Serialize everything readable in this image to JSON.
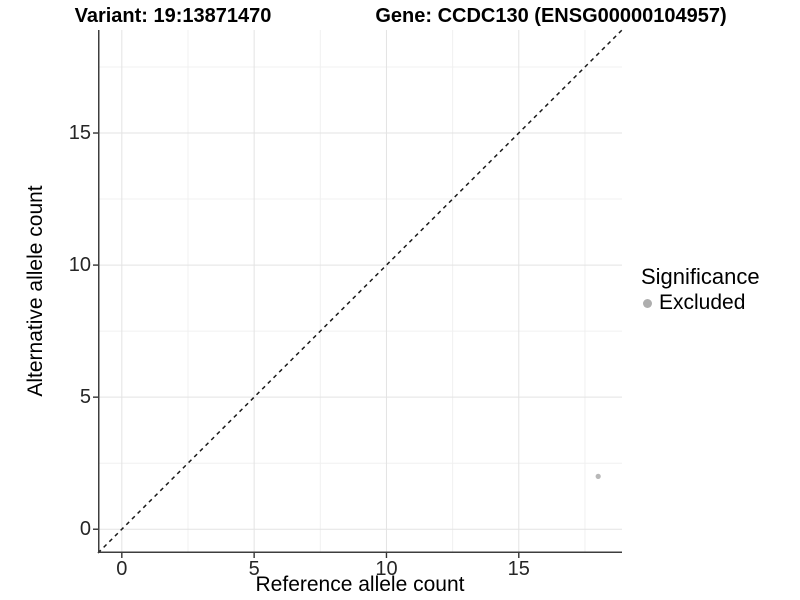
{
  "titles": {
    "variant": "Variant: 19:13871470",
    "gene": "Gene: CCDC130 (ENSG00000104957)"
  },
  "chart_data": {
    "type": "scatter",
    "title": "Variant: 19:13871470   Gene: CCDC130 (ENSG00000104957)",
    "xlabel": "Reference allele count",
    "ylabel": "Alternative allele count",
    "xlim": [
      -0.9,
      18.9
    ],
    "ylim": [
      -0.9,
      18.9
    ],
    "x_ticks": [
      0,
      5,
      10,
      15
    ],
    "y_ticks": [
      0,
      5,
      10,
      15
    ],
    "x_minor_ticks": [
      2.5,
      7.5,
      12.5,
      17.5
    ],
    "y_minor_ticks": [
      2.5,
      7.5,
      12.5,
      17.5
    ],
    "grid": "major and minor, light gray on white",
    "identity_line": {
      "slope": 1,
      "intercept": 0,
      "style": "dashed",
      "color": "#1a1a1a"
    },
    "series": [
      {
        "name": "Excluded",
        "color": "#b8b8b8",
        "points": [
          {
            "x": 18,
            "y": 2
          }
        ]
      }
    ],
    "legend": {
      "title": "Significance",
      "position": "right",
      "items": [
        {
          "label": "Excluded",
          "color": "#aeaeae"
        }
      ]
    }
  },
  "colors": {
    "background": "#ffffff",
    "grid_major": "#e3e3e3",
    "grid_minor": "#f0f0f0",
    "axis_line": "#3d3d3d",
    "tick_mark": "#333333",
    "point": "#b8b8b8"
  }
}
